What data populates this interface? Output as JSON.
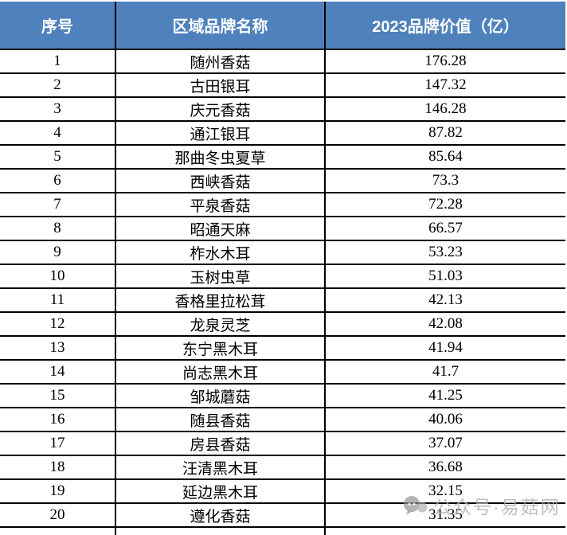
{
  "chart_data": {
    "type": "table",
    "columns": [
      "序号",
      "区域品牌名称",
      "2023品牌价值（亿）"
    ],
    "rows": [
      [
        1,
        "随州香菇",
        176.28
      ],
      [
        2,
        "古田银耳",
        147.32
      ],
      [
        3,
        "庆元香菇",
        146.28
      ],
      [
        4,
        "通江银耳",
        87.82
      ],
      [
        5,
        "那曲冬虫夏草",
        85.64
      ],
      [
        6,
        "西峡香菇",
        73.3
      ],
      [
        7,
        "平泉香菇",
        72.28
      ],
      [
        8,
        "昭通天麻",
        66.57
      ],
      [
        9,
        "柞水木耳",
        53.23
      ],
      [
        10,
        "玉树虫草",
        51.03
      ],
      [
        11,
        "香格里拉松茸",
        42.13
      ],
      [
        12,
        "龙泉灵芝",
        42.08
      ],
      [
        13,
        "东宁黑木耳",
        41.94
      ],
      [
        14,
        "尚志黑木耳",
        41.7
      ],
      [
        15,
        "邹城蘑菇",
        41.25
      ],
      [
        16,
        "随县香菇",
        40.06
      ],
      [
        17,
        "房县香菇",
        37.07
      ],
      [
        18,
        "汪清黑木耳",
        36.68
      ],
      [
        19,
        "延边黑木耳",
        32.15
      ],
      [
        20,
        "遵化香菇",
        31.35
      ]
    ],
    "legend_position": "none",
    "grid": true
  },
  "watermark": {
    "text": "公众号·易菇网",
    "icon": "chat-bubbles-icon"
  },
  "colors": {
    "header_bg": "#4f81bd",
    "header_text": "#ffffff",
    "border": "#000000",
    "watermark_gray": "#b0b0b0"
  }
}
